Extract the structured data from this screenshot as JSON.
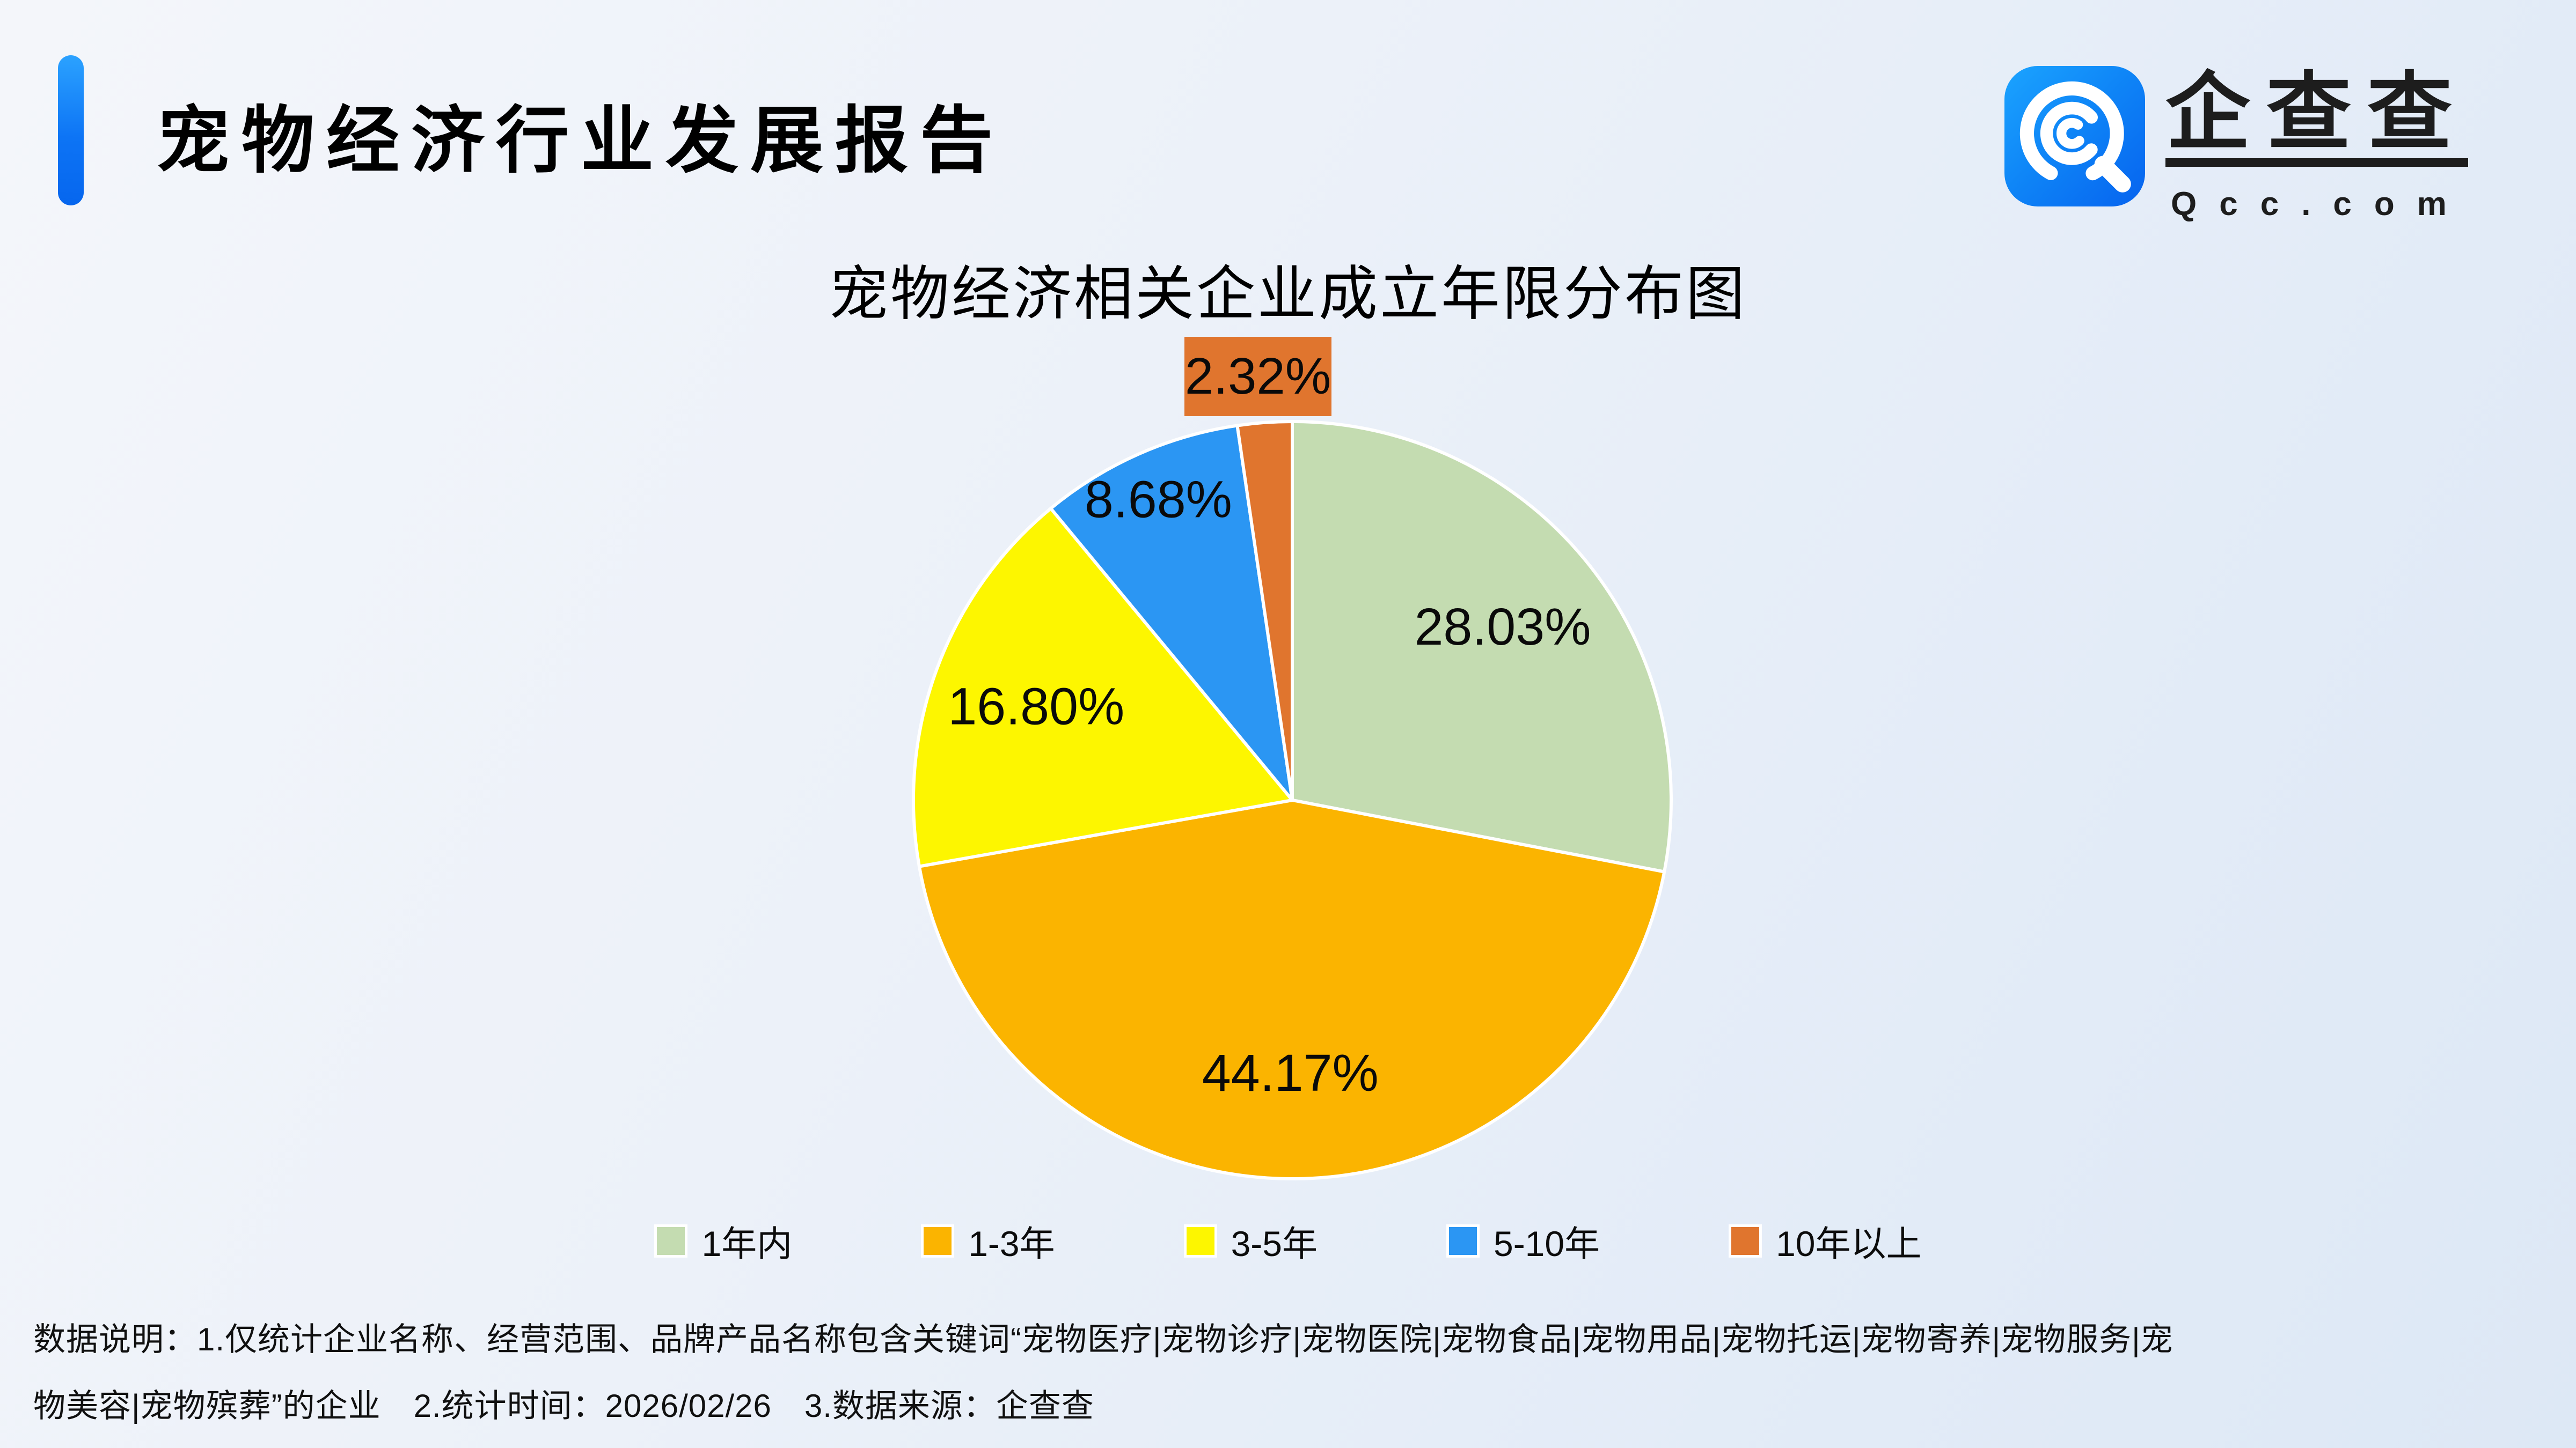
{
  "header": {
    "title": "宠物经济行业发展报告"
  },
  "logo": {
    "brand": "企查查",
    "domain": "Qcc.com"
  },
  "chart_data": {
    "type": "pie",
    "title": "宠物经济相关企业成立年限分布图",
    "unit": "%",
    "direction": "clockwise",
    "start_angle_deg": 0,
    "legend_position": "bottom",
    "categories": [
      "1年内",
      "1-3年",
      "3-5年",
      "5-10年",
      "10年以上"
    ],
    "values": [
      28.03,
      44.17,
      16.8,
      8.68,
      2.32
    ],
    "series": [
      {
        "label": "1年内",
        "value": 28.03,
        "display": "28.03%",
        "color": "#C4DCB1"
      },
      {
        "label": "1-3年",
        "value": 44.17,
        "display": "44.17%",
        "color": "#FBB400"
      },
      {
        "label": "3-5年",
        "value": 16.8,
        "display": "16.80%",
        "color": "#FDF600"
      },
      {
        "label": "5-10年",
        "value": 8.68,
        "display": "8.68%",
        "color": "#2B96F3"
      },
      {
        "label": "10年以上",
        "value": 2.32,
        "display": "2.32%",
        "color": "#E0752E",
        "callout": true
      }
    ]
  },
  "footer": {
    "line1": "数据说明：1.仅统计企业名称、经营范围、品牌产品名称包含关键词“宠物医疗|宠物诊疗|宠物医院|宠物食品|宠物用品|宠物托运|宠物寄养|宠物服务|宠",
    "line2": "物美容|宠物殡葬”的企业　2.统计时间：2026/02/26　3.数据来源：企查查"
  }
}
